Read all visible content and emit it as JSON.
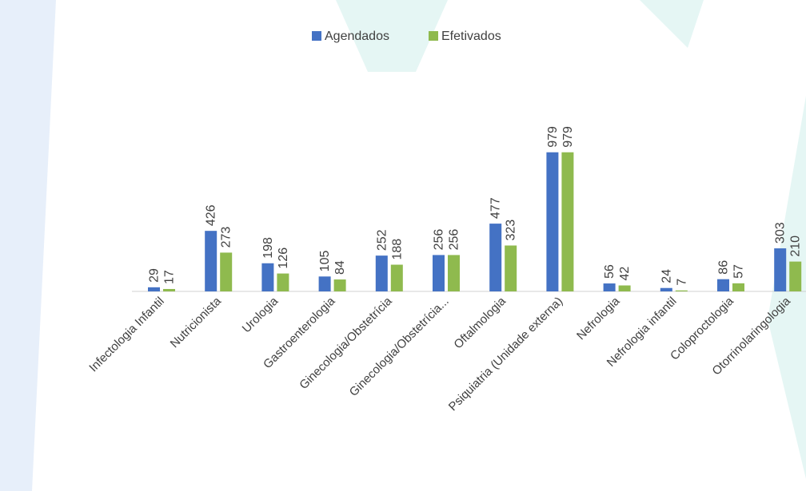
{
  "chart_data": {
    "type": "bar",
    "categories": [
      "Infectologia Infantil",
      "Nutricionista",
      "Urologia",
      "Gastroenterologia",
      "Ginecologia/Obstetrícia",
      "Ginecologia/Obstetrícia...",
      "Oftalmologia",
      "Psiquiatria (Unidade externa)",
      "Nefrologia",
      "Nefrologia infantil",
      "Coloproctologia",
      "Otorrinolaringologia"
    ],
    "series": [
      {
        "name": "Agendados",
        "color": "#4472c4",
        "values": [
          29,
          426,
          198,
          105,
          252,
          256,
          477,
          979,
          56,
          24,
          86,
          303
        ]
      },
      {
        "name": "Efetivados",
        "color": "#8fba4e",
        "values": [
          17,
          273,
          126,
          84,
          188,
          256,
          323,
          979,
          42,
          7,
          57,
          210
        ]
      }
    ],
    "ylim": [
      0,
      1000
    ]
  }
}
